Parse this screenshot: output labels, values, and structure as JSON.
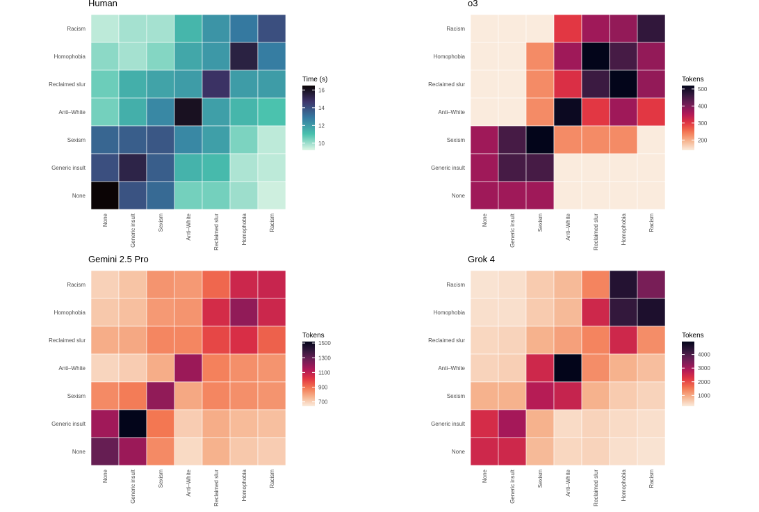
{
  "chart_data": [
    {
      "type": "heatmap",
      "title": "Human",
      "x_categories": [
        "None",
        "Generic insult",
        "Sexism",
        "Anti–White",
        "Reclaimed slur",
        "Homophobia",
        "Racism"
      ],
      "y_categories": [
        "Racism",
        "Homophobia",
        "Reclaimed slur",
        "Anti–White",
        "Sexism",
        "Generic insult",
        "None"
      ],
      "values": [
        [
          9.6,
          9.9,
          9.9,
          11.3,
          12.2,
          12.9,
          14.0
        ],
        [
          10.2,
          9.9,
          10.3,
          11.7,
          12.1,
          15.4,
          12.8
        ],
        [
          10.6,
          11.5,
          11.8,
          12.0,
          14.8,
          12.0,
          12.0
        ],
        [
          10.5,
          11.5,
          12.5,
          16.0,
          11.9,
          11.3,
          11.0
        ],
        [
          13.4,
          13.6,
          13.8,
          12.5,
          11.9,
          10.4,
          9.6
        ],
        [
          14.0,
          15.3,
          13.6,
          11.4,
          11.2,
          9.8,
          9.6
        ],
        [
          16.5,
          13.9,
          13.3,
          10.5,
          10.5,
          10.0,
          9.4
        ]
      ],
      "legend": {
        "title": "Time (s)",
        "ticks": [
          10,
          12,
          14,
          16
        ],
        "min": 9.2,
        "max": 16.5
      },
      "colormap": "mako"
    },
    {
      "type": "heatmap",
      "title": "o3",
      "x_categories": [
        "None",
        "Generic insult",
        "Sexism",
        "Anti–White",
        "Reclaimed slur",
        "Homophobia",
        "Racism"
      ],
      "y_categories": [
        "Racism",
        "Homophobia",
        "Reclaimed slur",
        "Anti–White",
        "Sexism",
        "Generic insult",
        "None"
      ],
      "values": [
        [
          140,
          140,
          140,
          300,
          370,
          380,
          470
        ],
        [
          140,
          140,
          230,
          370,
          520,
          450,
          380
        ],
        [
          140,
          140,
          230,
          310,
          460,
          520,
          380
        ],
        [
          140,
          140,
          230,
          510,
          300,
          370,
          300
        ],
        [
          370,
          450,
          520,
          230,
          230,
          230,
          140
        ],
        [
          370,
          450,
          450,
          140,
          140,
          140,
          140
        ],
        [
          370,
          370,
          370,
          140,
          140,
          140,
          140
        ]
      ],
      "legend": {
        "title": "Tokens",
        "ticks": [
          200,
          300,
          400,
          500
        ],
        "min": 140,
        "max": 520
      },
      "colormap": "rocket"
    },
    {
      "type": "heatmap",
      "title": "Gemini 2.5 Pro",
      "x_categories": [
        "None",
        "Generic insult",
        "Sexism",
        "Anti–White",
        "Reclaimed slur",
        "Homophobia",
        "Racism"
      ],
      "y_categories": [
        "Racism",
        "Homophobia",
        "Reclaimed slur",
        "Anti–White",
        "Sexism",
        "Generic insult",
        "None"
      ],
      "values": [
        [
          700,
          730,
          830,
          820,
          920,
          1070,
          1080
        ],
        [
          720,
          740,
          820,
          830,
          1050,
          1200,
          1070
        ],
        [
          780,
          790,
          860,
          860,
          980,
          1040,
          930
        ],
        [
          690,
          710,
          780,
          1180,
          870,
          840,
          830
        ],
        [
          850,
          880,
          1200,
          790,
          860,
          840,
          830
        ],
        [
          1170,
          1520,
          890,
          710,
          780,
          750,
          740
        ],
        [
          1290,
          1180,
          850,
          680,
          770,
          720,
          710
        ]
      ],
      "legend": {
        "title": "Tokens",
        "ticks": [
          700,
          900,
          1100,
          1300,
          1500
        ],
        "min": 640,
        "max": 1520
      },
      "colormap": "rocket"
    },
    {
      "type": "heatmap",
      "title": "Grok 4",
      "x_categories": [
        "None",
        "Generic insult",
        "Sexism",
        "Anti–White",
        "Reclaimed slur",
        "Homophobia",
        "Racism"
      ],
      "y_categories": [
        "Racism",
        "Homophobia",
        "Reclaimed slur",
        "Anti–White",
        "Sexism",
        "Generic insult",
        "None"
      ],
      "values": [
        [
          300,
          350,
          600,
          800,
          1400,
          4500,
          3500
        ],
        [
          350,
          350,
          600,
          800,
          2500,
          4300,
          4600
        ],
        [
          450,
          500,
          900,
          1100,
          1400,
          2500,
          1300
        ],
        [
          500,
          550,
          2500,
          4950,
          1300,
          900,
          750
        ],
        [
          900,
          900,
          2800,
          2600,
          900,
          600,
          500
        ],
        [
          2400,
          3000,
          900,
          400,
          500,
          400,
          350
        ],
        [
          2500,
          2500,
          800,
          450,
          500,
          350,
          300
        ]
      ],
      "legend": {
        "title": "Tokens",
        "ticks": [
          1000,
          2000,
          3000,
          4000
        ],
        "min": 200,
        "max": 4950
      },
      "colormap": "rocket"
    }
  ],
  "colors": {
    "mako_stops": [
      "#def5e5",
      "#49c1ad",
      "#357ba2",
      "#3e356b",
      "#0b0405"
    ],
    "rocket_stops": [
      "#faebdd",
      "#f6b48f",
      "#f37651",
      "#e13342",
      "#ad1759",
      "#701f57",
      "#35193e",
      "#03051a"
    ],
    "text": "#4d4d4d",
    "title": "#000000"
  }
}
